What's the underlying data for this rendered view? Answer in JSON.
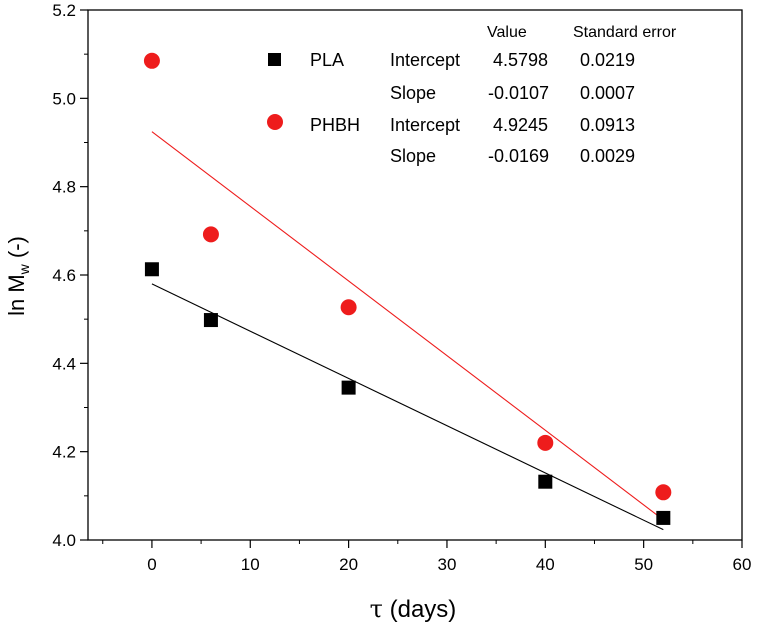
{
  "chart_data": {
    "type": "scatter",
    "xlabel_symbol": "τ",
    "xlabel_rest": " (days)",
    "ylabel_main": "ln M",
    "ylabel_sub": "w",
    "ylabel_tail": " (-)",
    "xlim": [
      -6.5,
      60
    ],
    "ylim": [
      4.0,
      5.2
    ],
    "xticks": [
      0,
      10,
      20,
      30,
      40,
      50,
      60
    ],
    "yticks": [
      4.0,
      4.2,
      4.4,
      4.6,
      4.8,
      5.0,
      5.2
    ],
    "xtick_labels": [
      "0",
      "10",
      "20",
      "30",
      "40",
      "50",
      "60"
    ],
    "ytick_labels": [
      "4.0",
      "4.2",
      "4.4",
      "4.6",
      "4.8",
      "5.0",
      "5.2"
    ],
    "series": [
      {
        "name": "PLA",
        "marker": "square",
        "color": "#000000",
        "x": [
          0,
          6,
          20,
          40,
          52
        ],
        "y": [
          4.613,
          4.498,
          4.345,
          4.132,
          4.05
        ],
        "fit": {
          "intercept": 4.5798,
          "slope": -0.0107,
          "x_range": [
            0,
            52
          ]
        }
      },
      {
        "name": "PHBH",
        "marker": "circle",
        "color": "#ee1c1c",
        "x": [
          0,
          6,
          20,
          40,
          52
        ],
        "y": [
          5.085,
          4.692,
          4.527,
          4.22,
          4.108
        ],
        "fit": {
          "intercept": 4.9245,
          "slope": -0.0169,
          "x_range": [
            0,
            52
          ]
        }
      }
    ],
    "fit_table": {
      "header_value": "Value",
      "header_error": "Standard error",
      "rows": [
        {
          "series": "PLA",
          "param": "Intercept",
          "value": "4.5798",
          "error": "0.0219"
        },
        {
          "series": "",
          "param": "Slope",
          "value": "-0.0107",
          "error": "0.0007"
        },
        {
          "series": "PHBH",
          "param": "Intercept",
          "value": "4.9245",
          "error": "0.0913"
        },
        {
          "series": "",
          "param": "Slope",
          "value": "-0.0169",
          "error": "0.0029"
        }
      ]
    }
  }
}
